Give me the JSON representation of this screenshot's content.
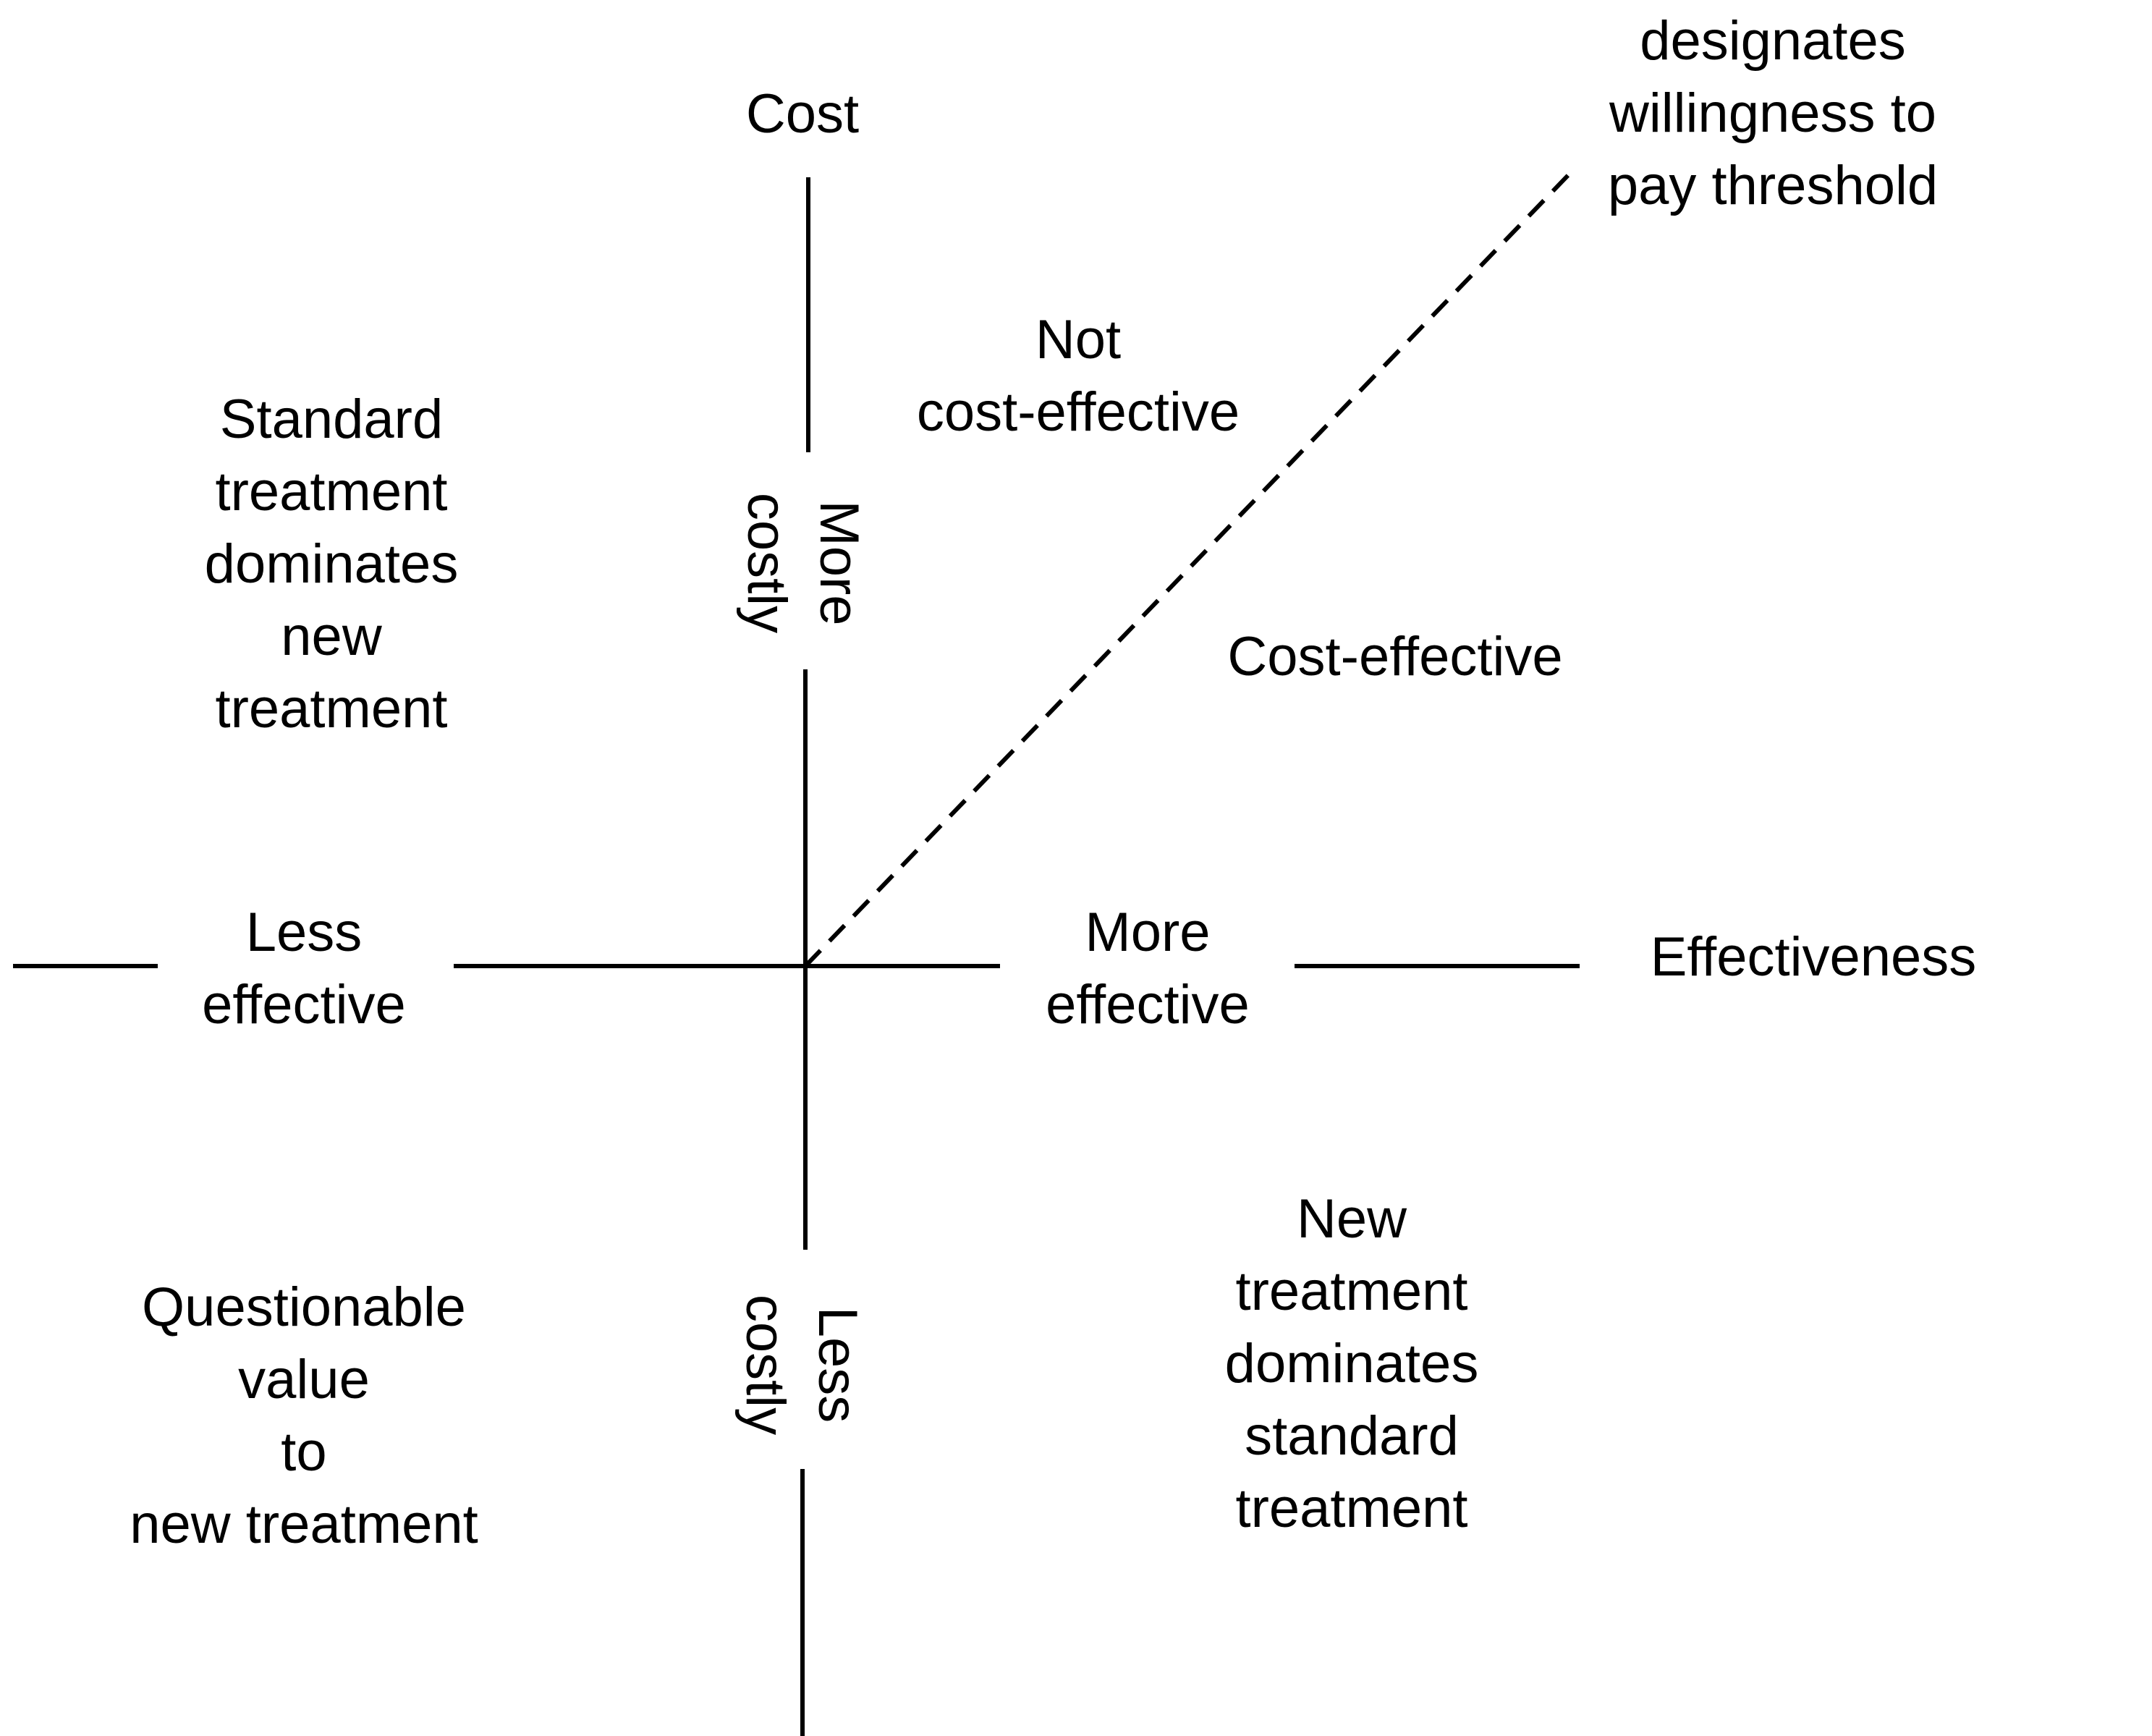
{
  "axes": {
    "y_title": "Cost",
    "x_title": "Effectiveness",
    "x_negative": "Less\neffective",
    "x_positive": "More\neffective",
    "y_positive": "More\ncostly",
    "y_negative": "Less\ncostly"
  },
  "threshold_note": "Dashed line designates\nwillingness to pay threshold",
  "quadrants": {
    "not_cost_effective": "Not\ncost-effective",
    "cost_effective": "Cost-effective",
    "standard_dominates": "Standard\ntreatment\ndominates\nnew\ntreatment",
    "questionable_value": "Questionable\nvalue\nto\nnew treatment",
    "new_dominates": "New\ntreatment\ndominates\nstandard\ntreatment"
  },
  "colors": {
    "line": "#000000",
    "background": "#ffffff"
  }
}
